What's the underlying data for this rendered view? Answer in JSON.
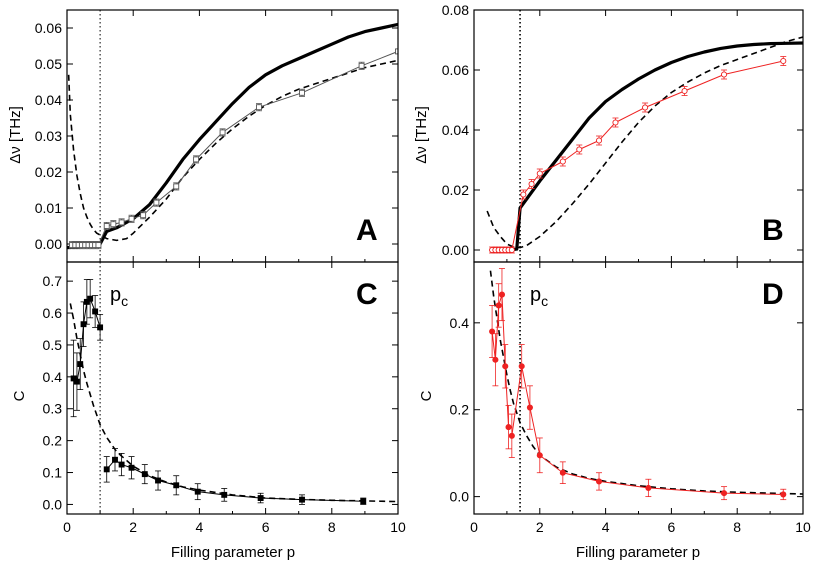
{
  "figure": {
    "x_axis_title": "Filling parameter p",
    "y_axis_title_top": "Δν [THz]",
    "y_axis_title_bottom": "C",
    "critical_label_main": "p",
    "critical_label_sub": "c"
  },
  "colors": {
    "black": "#000000",
    "red": "#ee2222",
    "gray": "#555555"
  },
  "chart_data": [
    {
      "panel": "A",
      "type": "line",
      "xlim": [
        0,
        10
      ],
      "ylim": [
        -0.005,
        0.065
      ],
      "xticks": [
        "0",
        "2",
        "4",
        "6",
        "8",
        "10"
      ],
      "yticks": [
        "0.00",
        "0.01",
        "0.02",
        "0.03",
        "0.04",
        "0.05",
        "0.06"
      ],
      "ylabel": "Δν [THz]",
      "critical_p": 1.0,
      "series": [
        {
          "style": "thick-solid",
          "color": "#000000",
          "x": [
            0.0,
            0.2,
            0.4,
            0.6,
            0.8,
            1.0,
            1.2,
            1.5,
            1.8,
            2.0,
            2.5,
            3.0,
            3.5,
            4.0,
            4.5,
            5.0,
            5.5,
            6.0,
            6.5,
            7.0,
            7.5,
            8.0,
            8.5,
            9.0,
            9.5,
            10.0
          ],
          "y": [
            -0.001,
            -0.0009,
            -0.0007,
            -0.0005,
            -0.0003,
            0.0,
            0.0035,
            0.0045,
            0.006,
            0.007,
            0.011,
            0.017,
            0.0235,
            0.029,
            0.034,
            0.039,
            0.0435,
            0.047,
            0.0495,
            0.0515,
            0.0535,
            0.0555,
            0.0575,
            0.059,
            0.06,
            0.061
          ]
        },
        {
          "style": "dashed",
          "color": "#000000",
          "x": [
            0.05,
            0.1,
            0.2,
            0.3,
            0.4,
            0.5,
            0.6,
            0.7,
            0.8,
            0.9,
            1.0,
            1.2,
            1.5,
            1.8,
            2.0,
            2.5,
            3.0,
            3.5,
            4.0,
            4.5,
            5.0,
            5.5,
            6.0,
            6.5,
            7.0,
            7.5,
            8.0,
            8.5,
            9.0,
            9.5,
            10.0
          ],
          "y": [
            0.047,
            0.036,
            0.026,
            0.019,
            0.014,
            0.01,
            0.0075,
            0.0055,
            0.004,
            0.003,
            0.0025,
            0.0015,
            0.001,
            0.0015,
            0.003,
            0.0075,
            0.0125,
            0.0185,
            0.0235,
            0.028,
            0.032,
            0.0355,
            0.0385,
            0.041,
            0.043,
            0.0445,
            0.046,
            0.0475,
            0.049,
            0.05,
            0.051
          ]
        },
        {
          "style": "thin-solid-open-square",
          "color": "#555555",
          "x": [
            0.15,
            0.25,
            0.35,
            0.45,
            0.55,
            0.65,
            0.75,
            0.85,
            0.95,
            1.2,
            1.4,
            1.65,
            1.95,
            2.3,
            2.7,
            3.3,
            3.9,
            4.7,
            5.8,
            7.1,
            8.9,
            10.0
          ],
          "y": [
            -0.0003,
            -0.0003,
            -0.0003,
            -0.0003,
            -0.0003,
            -0.0003,
            -0.0003,
            -0.0003,
            -0.0003,
            0.005,
            0.0055,
            0.006,
            0.007,
            0.008,
            0.0115,
            0.016,
            0.0235,
            0.031,
            0.038,
            0.042,
            0.0495,
            0.0535
          ],
          "yerr": [
            0.001,
            0.001,
            0.001,
            0.001,
            0.001,
            0.001,
            0.001,
            0.001,
            0.001,
            0.001,
            0.001,
            0.001,
            0.001,
            0.001,
            0.001,
            0.001,
            0.001,
            0.001,
            0.001,
            0.001,
            0.001,
            0.0
          ]
        }
      ]
    },
    {
      "panel": "B",
      "type": "line",
      "xlim": [
        0,
        10
      ],
      "ylim": [
        -0.004,
        0.08
      ],
      "xticks": [
        "0",
        "2",
        "4",
        "6",
        "8",
        "10"
      ],
      "yticks": [
        "0.00",
        "0.02",
        "0.04",
        "0.06",
        "0.08"
      ],
      "ylabel": "Δν [THz]",
      "critical_p": 1.4,
      "series": [
        {
          "style": "thick-solid",
          "color": "#000000",
          "x": [
            0.5,
            0.8,
            1.1,
            1.3,
            1.4,
            1.6,
            1.8,
            2.0,
            2.5,
            3.0,
            3.5,
            4.0,
            4.5,
            5.0,
            5.5,
            6.0,
            6.5,
            7.0,
            7.5,
            8.0,
            8.5,
            9.0,
            9.5,
            10.0
          ],
          "y": [
            -0.0005,
            -0.0004,
            0.0,
            0.0003,
            0.014,
            0.017,
            0.02,
            0.023,
            0.03,
            0.037,
            0.044,
            0.0495,
            0.0535,
            0.057,
            0.06,
            0.0625,
            0.0645,
            0.066,
            0.0672,
            0.068,
            0.0685,
            0.0688,
            0.0689,
            0.069
          ]
        },
        {
          "style": "dashed",
          "color": "#000000",
          "x": [
            0.4,
            0.6,
            0.8,
            1.0,
            1.2,
            1.4,
            1.6,
            1.8,
            2.0,
            2.5,
            3.0,
            3.5,
            4.0,
            4.5,
            5.0,
            5.5,
            6.0,
            6.5,
            7.0,
            7.5,
            8.0,
            8.5,
            9.0,
            9.5,
            10.0
          ],
          "y": [
            0.013,
            0.0075,
            0.0045,
            0.002,
            0.001,
            0.0008,
            0.0015,
            0.003,
            0.0045,
            0.0095,
            0.0155,
            0.022,
            0.029,
            0.036,
            0.0425,
            0.048,
            0.0525,
            0.056,
            0.059,
            0.0615,
            0.0635,
            0.0655,
            0.0675,
            0.0695,
            0.071
          ]
        },
        {
          "style": "thin-solid-open-circle",
          "color": "#ee2222",
          "x": [
            0.55,
            0.65,
            0.75,
            0.85,
            0.95,
            1.05,
            1.15,
            1.5,
            1.75,
            2.0,
            2.7,
            3.2,
            3.8,
            4.3,
            5.2,
            6.4,
            7.6,
            9.4
          ],
          "y": [
            0.0,
            0.0,
            0.0,
            0.0,
            0.0,
            0.0,
            0.0,
            0.0185,
            0.022,
            0.0255,
            0.0295,
            0.0335,
            0.0365,
            0.0425,
            0.0475,
            0.053,
            0.0585,
            0.063
          ],
          "yerr": [
            0.001,
            0.001,
            0.001,
            0.001,
            0.001,
            0.001,
            0.001,
            0.0015,
            0.0015,
            0.0015,
            0.0015,
            0.0015,
            0.0015,
            0.0015,
            0.0015,
            0.0015,
            0.0015,
            0.0015
          ]
        }
      ]
    },
    {
      "panel": "C",
      "type": "scatter",
      "xlim": [
        0,
        10
      ],
      "ylim": [
        -0.03,
        0.76
      ],
      "xticks": [
        "0",
        "2",
        "4",
        "6",
        "8",
        "10"
      ],
      "yticks": [
        "0.0",
        "0.1",
        "0.2",
        "0.3",
        "0.4",
        "0.5",
        "0.6",
        "0.7"
      ],
      "ylabel": "C",
      "xlabel": "Filling parameter p",
      "critical_p": 1.0,
      "series": [
        {
          "style": "dashed",
          "color": "#000000",
          "x": [
            0.1,
            0.2,
            0.3,
            0.4,
            0.5,
            0.6,
            0.8,
            1.0,
            1.2,
            1.5,
            2.0,
            2.5,
            3.0,
            3.5,
            4.0,
            5.0,
            6.0,
            7.0,
            8.0,
            9.0,
            10.0
          ],
          "y": [
            0.63,
            0.58,
            0.52,
            0.47,
            0.42,
            0.38,
            0.31,
            0.25,
            0.21,
            0.165,
            0.12,
            0.09,
            0.07,
            0.055,
            0.045,
            0.03,
            0.02,
            0.016,
            0.013,
            0.011,
            0.009
          ]
        },
        {
          "style": "thin-solid-filled-square",
          "color": "#000000",
          "x": [
            0.2,
            0.3,
            0.4,
            0.5,
            0.6,
            0.7,
            0.85,
            1.0
          ],
          "y": [
            0.395,
            0.385,
            0.44,
            0.565,
            0.635,
            0.645,
            0.605,
            0.555
          ],
          "yerr": [
            0.12,
            0.09,
            0.08,
            0.07,
            0.07,
            0.06,
            0.05,
            0.04
          ]
        },
        {
          "style": "thin-solid-filled-square",
          "color": "#000000",
          "x": [
            1.2,
            1.45,
            1.65,
            1.95,
            2.35,
            2.75,
            3.3,
            3.95,
            4.75,
            5.85,
            7.1,
            8.95
          ],
          "y": [
            0.11,
            0.14,
            0.125,
            0.115,
            0.095,
            0.075,
            0.06,
            0.04,
            0.03,
            0.02,
            0.015,
            0.01
          ],
          "yerr": [
            0.04,
            0.035,
            0.035,
            0.035,
            0.03,
            0.03,
            0.03,
            0.025,
            0.02,
            0.015,
            0.015,
            0.01
          ]
        }
      ]
    },
    {
      "panel": "D",
      "type": "scatter",
      "xlim": [
        0,
        10
      ],
      "ylim": [
        -0.04,
        0.54
      ],
      "xticks": [
        "0",
        "2",
        "4",
        "6",
        "8",
        "10"
      ],
      "yticks": [
        "0.0",
        "0.2",
        "0.4"
      ],
      "ylabel": "C",
      "xlabel": "Filling parameter p",
      "critical_p": 1.4,
      "series": [
        {
          "style": "dashed",
          "color": "#000000",
          "x": [
            0.5,
            0.6,
            0.7,
            0.8,
            0.9,
            1.0,
            1.1,
            1.2,
            1.4,
            1.6,
            1.8,
            2.0,
            2.5,
            3.0,
            3.5,
            4.0,
            5.0,
            6.0,
            7.0,
            8.0,
            9.0,
            10.0
          ],
          "y": [
            0.52,
            0.46,
            0.41,
            0.36,
            0.32,
            0.28,
            0.245,
            0.215,
            0.17,
            0.14,
            0.115,
            0.095,
            0.068,
            0.052,
            0.042,
            0.035,
            0.025,
            0.018,
            0.013,
            0.01,
            0.008,
            0.006
          ]
        },
        {
          "style": "thin-solid-filled-circle",
          "color": "#ee2222",
          "x": [
            0.55,
            0.65,
            0.75,
            0.85,
            0.95,
            1.05
          ],
          "y": [
            0.38,
            0.315,
            0.44,
            0.465,
            0.3,
            0.16
          ],
          "yerr": [
            0.06,
            0.06,
            0.05,
            0.06,
            0.05,
            0.05
          ]
        },
        {
          "style": "thin-solid-filled-circle",
          "color": "#ee2222",
          "x": [
            1.15,
            1.45,
            1.7,
            2.0,
            2.7,
            3.8,
            5.3,
            7.6,
            9.4
          ],
          "y": [
            0.14,
            0.3,
            0.205,
            0.095,
            0.055,
            0.035,
            0.02,
            0.008,
            0.005
          ],
          "yerr": [
            0.05,
            0.05,
            0.05,
            0.04,
            0.025,
            0.02,
            0.02,
            0.015,
            0.012
          ]
        }
      ]
    }
  ]
}
